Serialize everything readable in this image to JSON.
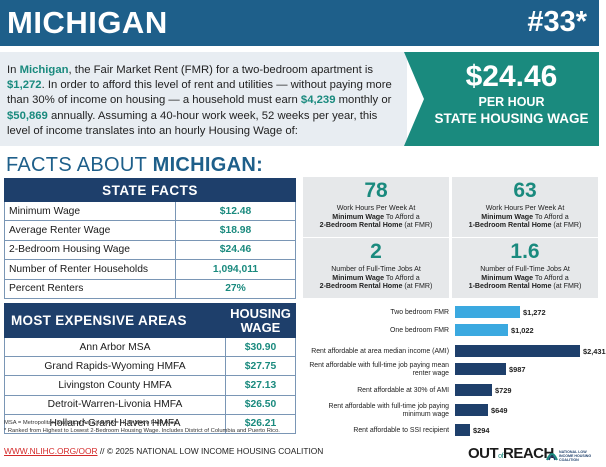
{
  "header": {
    "state": "MICHIGAN",
    "rank": "#33*"
  },
  "intro": {
    "p1": "In ",
    "state": "Michigan",
    "p2": ", the Fair Market Rent (FMR) for a two-bedroom apartment is ",
    "fmr": "$1,272",
    "p3": ". In order to afford this level of rent and utilities — without paying more than 30% of income on housing — a household must earn ",
    "monthly": "$4,239",
    "p4": " monthly or ",
    "annual": "$50,869",
    "p5": " annually. Assuming a 40-hour work week, 52 weeks per year, this level of income translates into an hourly Housing Wage of:"
  },
  "housing_wage": {
    "amount": "$24.46",
    "per": "PER HOUR",
    "label": "STATE HOUSING WAGE",
    "color": "#1a8a7e"
  },
  "facts_title": {
    "prefix": "FACTS ABOUT ",
    "state": "MICHIGAN:"
  },
  "state_facts": {
    "title": "STATE FACTS",
    "rows": [
      {
        "label": "Minimum Wage",
        "value": "$12.48"
      },
      {
        "label": "Average Renter Wage",
        "value": "$18.98"
      },
      {
        "label": "2-Bedroom Housing Wage",
        "value": "$24.46"
      },
      {
        "label": "Number of Renter Households",
        "value": "1,094,011"
      },
      {
        "label": "Percent Renters",
        "value": "27%"
      }
    ]
  },
  "expensive_areas": {
    "col1": "MOST EXPENSIVE AREAS",
    "col2": "HOUSING WAGE",
    "rows": [
      {
        "area": "Ann Arbor MSA",
        "wage": "$30.90"
      },
      {
        "area": "Grand Rapids-Wyoming HMFA",
        "wage": "$27.75"
      },
      {
        "area": "Livingston County HMFA",
        "wage": "$27.13"
      },
      {
        "area": "Detroit-Warren-Livonia HMFA",
        "wage": "$26.50"
      },
      {
        "area": "Holland-Grand Haven HMFA",
        "wage": "$26.21"
      }
    ]
  },
  "notes": {
    "line1": "MSA = Metropolitan Statistical Area; HMFA = HUD Metro FMR Area.",
    "line2": "* Ranked from Highest to Lowest 2-Bedroom Housing Wage. Includes District of Columbia and Puerto Rico."
  },
  "footer": {
    "url": "WWW.NLIHC.ORG/OOR",
    "rest": " // © 2025 NATIONAL LOW INCOME HOUSING COALITION"
  },
  "cards": [
    {
      "num": "78",
      "l1": "Work Hours Per Week At",
      "l2b": "Minimum Wage",
      "l2": " To Afford a",
      "l3b": "2-Bedroom Rental Home",
      "l3": " (at FMR)"
    },
    {
      "num": "63",
      "l1": "Work Hours Per Week At",
      "l2b": "Minimum Wage",
      "l2": " To Afford a",
      "l3b": "1-Bedroom Rental Home",
      "l3": " (at FMR)"
    },
    {
      "num": "2",
      "l1": "Number of Full-Time Jobs At",
      "l2b": "Minimum Wage",
      "l2": " To Afford a",
      "l3b": "2-Bedroom Rental Home",
      "l3": " (at FMR)"
    },
    {
      "num": "1.6",
      "l1": "Number of Full-Time Jobs At",
      "l2b": "Minimum Wage",
      "l2": " To Afford a",
      "l3b": "1-Bedroom Rental Home",
      "l3": " (at FMR)"
    }
  ],
  "chart_data": {
    "type": "bar",
    "orientation": "horizontal",
    "categories": [
      "Two bedroom FMR",
      "One bedroom FMR",
      "Rent affordable at area median income (AMI)",
      "Rent affordable with full-time job paying mean renter wage",
      "Rent affordable at 30% of AMI",
      "Rent affordable with full-time job paying minimum wage",
      "Rent affordable to SSI recipient"
    ],
    "values": [
      1272,
      1022,
      2431,
      987,
      729,
      649,
      294
    ],
    "value_labels": [
      "$1,272",
      "$1,022",
      "$2,431",
      "$987",
      "$729",
      "$649",
      "$294"
    ],
    "colors": [
      "#3ba9e0",
      "#3ba9e0",
      "#1e3f6b",
      "#1e3f6b",
      "#1e3f6b",
      "#1e3f6b",
      "#1e3f6b"
    ],
    "xlim": [
      0,
      2431
    ]
  },
  "logos": {
    "oor_a": "OUT",
    "oor_b": "of",
    "oor_c": "REACH",
    "nlihc": "NATIONAL LOW INCOME HOUSING COALITION"
  }
}
